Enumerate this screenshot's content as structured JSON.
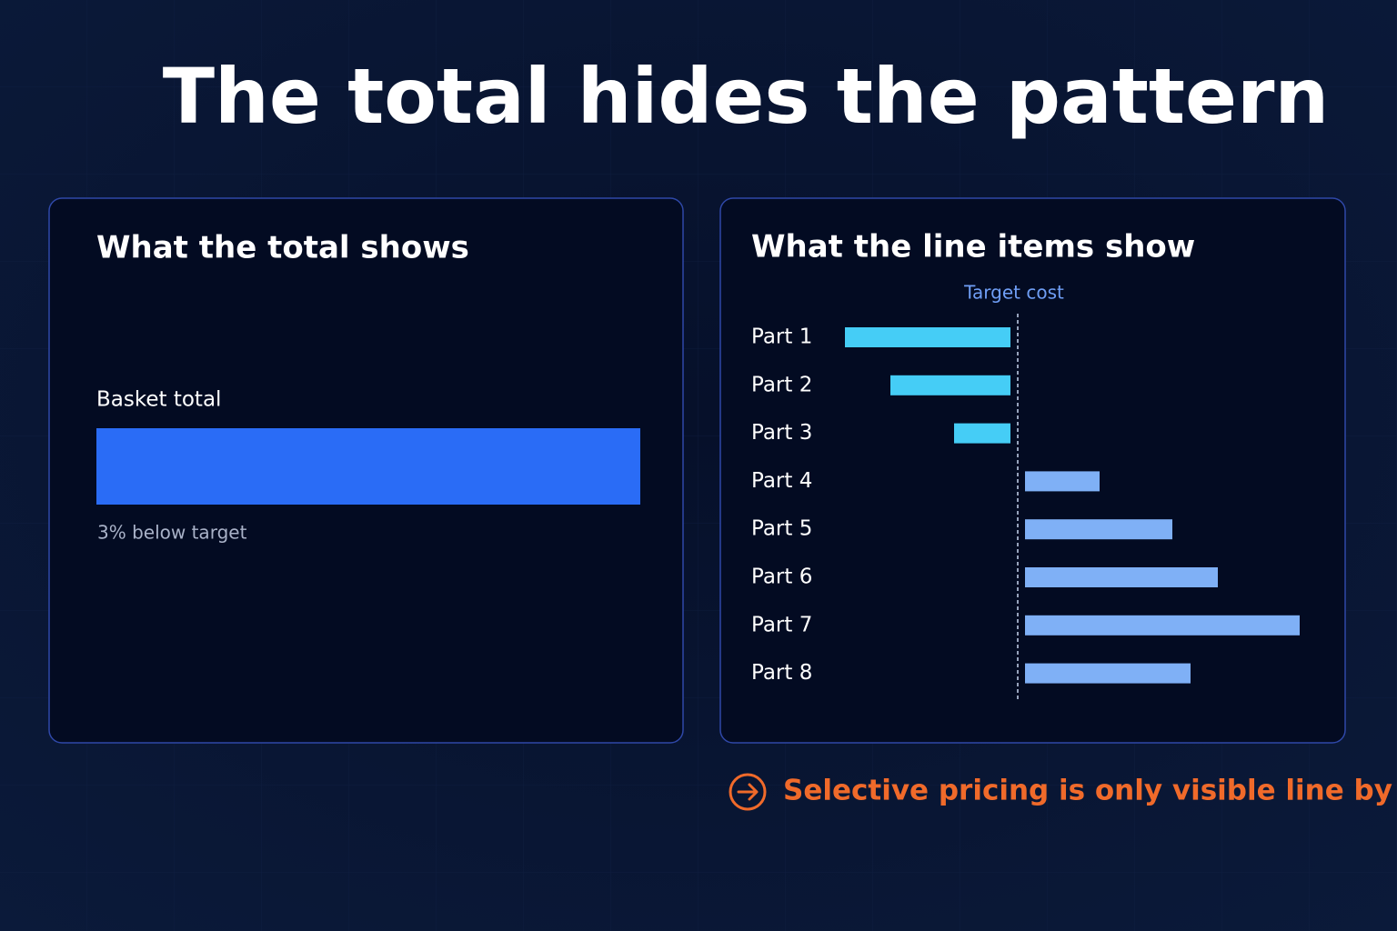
{
  "title": "The total hides the pattern",
  "chart_data": [
    {
      "type": "bar",
      "title": "What the total shows",
      "categories": [
        "Basket total"
      ],
      "values": [
        97
      ],
      "xlim": [
        0,
        97
      ],
      "color": "#2a6cf6",
      "annotation": "3% below target"
    },
    {
      "type": "bar",
      "title": "What the line items show",
      "categories": [
        "Part 1",
        "Part 2",
        "Part 3",
        "Part 4",
        "Part 5",
        "Part 6",
        "Part 7",
        "Part 8"
      ],
      "values": [
        -19,
        -14,
        -7,
        9,
        17,
        22,
        31,
        19
      ],
      "xlim": [
        -20,
        32
      ],
      "colors": [
        "#45cdf6",
        "#45cdf6",
        "#45cdf6",
        "#7fb0f6",
        "#7fb0f6",
        "#7fb0f6",
        "#7fb0f6",
        "#7fb0f6"
      ],
      "target": 0,
      "target_label": "Target cost"
    }
  ],
  "note": "Selective pricing is only visible line by line."
}
